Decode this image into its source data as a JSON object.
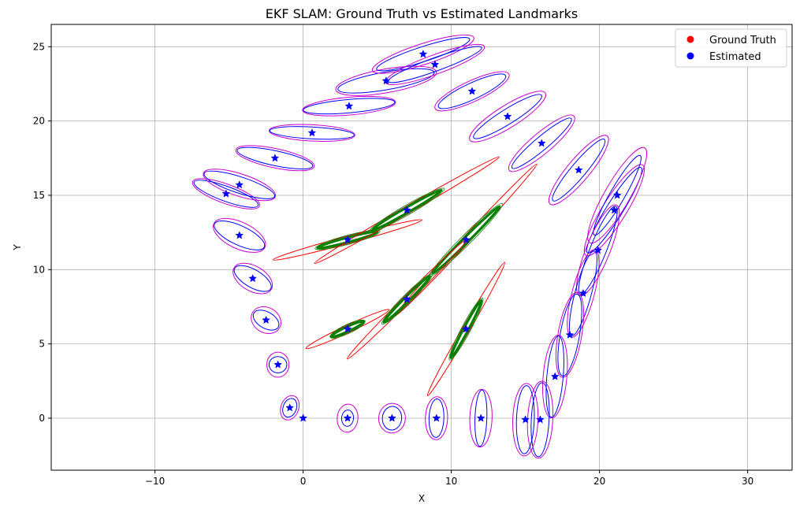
{
  "chart_data": {
    "type": "scatter",
    "title": "EKF SLAM: Ground Truth vs Estimated Landmarks",
    "xlabel": "X",
    "ylabel": "Y",
    "xlim": [
      -17,
      33
    ],
    "ylim": [
      -3.5,
      26.5
    ],
    "xticks": [
      -10,
      0,
      10,
      20,
      30
    ],
    "yticks": [
      0,
      5,
      10,
      15,
      20,
      25
    ],
    "grid": true,
    "legend_position": "top-right",
    "legend": [
      {
        "label": "Ground Truth",
        "color": "#ff0000"
      },
      {
        "label": "Estimated",
        "color": "#0000ff"
      }
    ],
    "colors": {
      "ground_truth": "#ff0000",
      "estimated": "#0000ff",
      "trajectory_cov": "#cc00cc",
      "landmark_cov": "#008000"
    },
    "trajectory": [
      {
        "x": 0,
        "y": 0,
        "rx": 0,
        "ry": 0,
        "ang": 0,
        "orx": 0,
        "ory": 0
      },
      {
        "x": -0.9,
        "y": 0.7,
        "rx": 0.45,
        "ry": 0.65,
        "ang": 20,
        "orx": 0.6,
        "ory": 0.85
      },
      {
        "x": -1.7,
        "y": 3.6,
        "rx": 0.6,
        "ry": 0.55,
        "ang": 0,
        "orx": 0.75,
        "ory": 0.85
      },
      {
        "x": -2.5,
        "y": 6.6,
        "rx": 0.95,
        "ry": 0.55,
        "ang": 30,
        "orx": 1.05,
        "ory": 0.85
      },
      {
        "x": -3.4,
        "y": 9.4,
        "rx": 1.4,
        "ry": 0.6,
        "ang": 30,
        "orx": 1.45,
        "ory": 0.85
      },
      {
        "x": -4.3,
        "y": 12.3,
        "rx": 1.85,
        "ry": 0.65,
        "ang": 25,
        "orx": 1.9,
        "ory": 0.9
      },
      {
        "x": -5.2,
        "y": 15.1,
        "rx": 2.3,
        "ry": 0.5,
        "ang": 20,
        "orx": 2.4,
        "ory": 0.65
      },
      {
        "x": -4.3,
        "y": 15.7,
        "rx": 2.5,
        "ry": 0.55,
        "ang": 18,
        "orx": 2.55,
        "ory": 0.75
      },
      {
        "x": -1.9,
        "y": 17.5,
        "rx": 2.6,
        "ry": 0.5,
        "ang": 12,
        "orx": 2.7,
        "ory": 0.65
      },
      {
        "x": 0.6,
        "y": 19.2,
        "rx": 2.85,
        "ry": 0.4,
        "ang": 3,
        "orx": 2.9,
        "ory": 0.55
      },
      {
        "x": 3.1,
        "y": 21.0,
        "rx": 3.1,
        "ry": 0.45,
        "ang": -5,
        "orx": 3.15,
        "ory": 0.6
      },
      {
        "x": 5.6,
        "y": 22.7,
        "rx": 3.3,
        "ry": 0.6,
        "ang": -10,
        "orx": 3.45,
        "ory": 0.8
      },
      {
        "x": 8.1,
        "y": 24.5,
        "rx": 3.3,
        "ry": 0.5,
        "ang": -18,
        "orx": 3.6,
        "ory": 0.7
      },
      {
        "x": 8.9,
        "y": 23.8,
        "rx": 3.35,
        "ry": 0.45,
        "ang": -20,
        "orx": 3.55,
        "ory": 0.65
      },
      {
        "x": 11.4,
        "y": 22.0,
        "rx": 2.5,
        "ry": 0.55,
        "ang": -25,
        "orx": 2.75,
        "ory": 0.7
      },
      {
        "x": 13.8,
        "y": 20.3,
        "rx": 2.7,
        "ry": 0.5,
        "ang": -32,
        "orx": 3.0,
        "ory": 0.75
      },
      {
        "x": 16.1,
        "y": 18.5,
        "rx": 2.6,
        "ry": 0.45,
        "ang": -40,
        "orx": 2.85,
        "ory": 0.7
      },
      {
        "x": 18.6,
        "y": 16.7,
        "rx": 2.7,
        "ry": 0.5,
        "ang": -50,
        "orx": 3.0,
        "ory": 0.75
      },
      {
        "x": 21.0,
        "y": 14.0,
        "rx": 3.4,
        "ry": 0.55,
        "ang": -58,
        "orx": 3.6,
        "ory": 0.8
      },
      {
        "x": 21.2,
        "y": 15.0,
        "rx": 3.1,
        "ry": 0.5,
        "ang": -60,
        "orx": 3.7,
        "ory": 0.85
      },
      {
        "x": 19.9,
        "y": 11.3,
        "rx": 3.2,
        "ry": 0.55,
        "ang": -68,
        "orx": 3.3,
        "ory": 0.8
      },
      {
        "x": 18.9,
        "y": 8.4,
        "rx": 2.95,
        "ry": 0.55,
        "ang": -75,
        "orx": 3.05,
        "ory": 0.75
      },
      {
        "x": 18.0,
        "y": 5.6,
        "rx": 2.8,
        "ry": 0.65,
        "ang": -80,
        "orx": 2.9,
        "ory": 0.8
      },
      {
        "x": 17.0,
        "y": 2.8,
        "rx": 2.75,
        "ry": 0.55,
        "ang": -85,
        "orx": 2.8,
        "ory": 0.8
      },
      {
        "x": 16.0,
        "y": -0.1,
        "rx": 2.5,
        "ry": 0.6,
        "ang": -87,
        "orx": 2.6,
        "ory": 0.85
      },
      {
        "x": 15.0,
        "y": -0.1,
        "rx": 2.3,
        "ry": 0.6,
        "ang": -88,
        "orx": 2.45,
        "ory": 0.85
      },
      {
        "x": 12.0,
        "y": 0.0,
        "rx": 1.9,
        "ry": 0.4,
        "ang": -88,
        "orx": 1.95,
        "ory": 0.75
      },
      {
        "x": 9.0,
        "y": 0.0,
        "rx": 1.3,
        "ry": 0.5,
        "ang": -88,
        "orx": 1.45,
        "ory": 0.75
      },
      {
        "x": 6.0,
        "y": 0.0,
        "rx": 0.8,
        "ry": 0.65,
        "ang": -85,
        "orx": 1.0,
        "ory": 0.9
      },
      {
        "x": 3.0,
        "y": 0.0,
        "rx": 0.55,
        "ry": 0.4,
        "ang": -85,
        "orx": 0.95,
        "ory": 0.7
      }
    ],
    "landmarks": [
      {
        "x": 3.0,
        "y": 12.0,
        "gx": 3.0,
        "gy": 12.0,
        "rrx": 5.2,
        "rry": 0.25,
        "rang": -15,
        "grx": 2.1,
        "gry": 0.16,
        "gang": -15
      },
      {
        "x": 7.0,
        "y": 14.0,
        "gx": 7.0,
        "gy": 14.0,
        "rrx": 7.2,
        "rry": 0.25,
        "rang": -30,
        "grx": 2.7,
        "gry": 0.17,
        "gang": -30
      },
      {
        "x": 11.0,
        "y": 12.0,
        "gx": 11.0,
        "gy": 12.0,
        "rrx": 7.0,
        "rry": 0.25,
        "rang": -47,
        "grx": 3.2,
        "gry": 0.18,
        "gang": -45
      },
      {
        "x": 7.0,
        "y": 8.0,
        "gx": 7.0,
        "gy": 8.0,
        "rrx": 5.7,
        "rry": 0.25,
        "rang": -45,
        "grx": 2.2,
        "gry": 0.16,
        "gang": -45
      },
      {
        "x": 11.0,
        "y": 6.0,
        "gx": 11.0,
        "gy": 6.0,
        "rrx": 5.2,
        "rry": 0.25,
        "rang": -60,
        "grx": 2.2,
        "gry": 0.16,
        "gang": -62
      },
      {
        "x": 3.0,
        "y": 6.0,
        "gx": 3.0,
        "gy": 6.0,
        "rrx": 3.1,
        "rry": 0.25,
        "rang": -25,
        "grx": 1.2,
        "gry": 0.16,
        "gang": -25
      }
    ]
  }
}
